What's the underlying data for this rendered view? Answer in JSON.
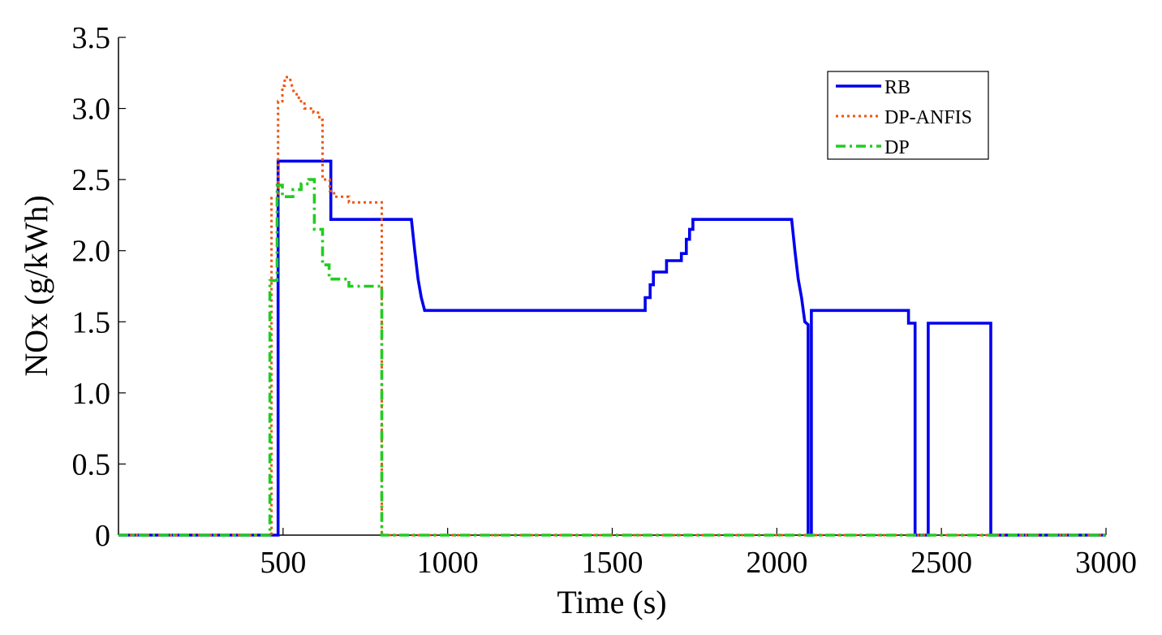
{
  "chart_data": {
    "type": "line",
    "title": "",
    "xlabel": "Time (s)",
    "ylabel": "NOx (g/kWh)",
    "xlim": [
      0,
      3000
    ],
    "ylim": [
      0,
      3.5
    ],
    "x_ticks": [
      500,
      1000,
      1500,
      2000,
      2500,
      3000
    ],
    "x_tick_labels": [
      "500",
      "1000",
      "1500",
      "2000",
      "2500",
      "3000"
    ],
    "y_ticks": [
      0,
      0.5,
      1.0,
      1.5,
      2.0,
      2.5,
      3.0,
      3.5
    ],
    "y_tick_labels": [
      "0",
      "0.5",
      "1.0",
      "1.5",
      "2.0",
      "2.5",
      "3.0",
      "3.5"
    ],
    "grid": false,
    "legend_position": "top-right",
    "series": [
      {
        "name": "RB",
        "color": "#0000ee",
        "style": "solid",
        "points": [
          [
            0,
            0
          ],
          [
            485,
            0
          ],
          [
            485,
            2.63
          ],
          [
            645,
            2.63
          ],
          [
            645,
            2.22
          ],
          [
            890,
            2.22
          ],
          [
            900,
            2.0
          ],
          [
            910,
            1.8
          ],
          [
            920,
            1.67
          ],
          [
            930,
            1.58
          ],
          [
            1600,
            1.58
          ],
          [
            1600,
            1.67
          ],
          [
            1615,
            1.67
          ],
          [
            1615,
            1.76
          ],
          [
            1625,
            1.76
          ],
          [
            1625,
            1.85
          ],
          [
            1665,
            1.85
          ],
          [
            1665,
            1.93
          ],
          [
            1710,
            1.93
          ],
          [
            1710,
            1.98
          ],
          [
            1725,
            1.98
          ],
          [
            1725,
            2.08
          ],
          [
            1735,
            2.08
          ],
          [
            1735,
            2.15
          ],
          [
            1745,
            2.15
          ],
          [
            1745,
            2.22
          ],
          [
            2045,
            2.22
          ],
          [
            2055,
            2.0
          ],
          [
            2065,
            1.8
          ],
          [
            2075,
            1.67
          ],
          [
            2085,
            1.5
          ],
          [
            2095,
            1.48
          ],
          [
            2095,
            0
          ],
          [
            2105,
            0
          ],
          [
            2105,
            1.58
          ],
          [
            2400,
            1.58
          ],
          [
            2400,
            1.49
          ],
          [
            2420,
            1.49
          ],
          [
            2420,
            0
          ],
          [
            2460,
            0
          ],
          [
            2460,
            1.49
          ],
          [
            2650,
            1.49
          ],
          [
            2650,
            0
          ],
          [
            3000,
            0
          ]
        ]
      },
      {
        "name": "DP-ANFIS",
        "color": "#ee5511",
        "style": "dotted",
        "points": [
          [
            0,
            0
          ],
          [
            465,
            0
          ],
          [
            465,
            2.37
          ],
          [
            485,
            2.37
          ],
          [
            485,
            3.05
          ],
          [
            498,
            3.05
          ],
          [
            498,
            3.16
          ],
          [
            505,
            3.16
          ],
          [
            505,
            3.22
          ],
          [
            520,
            3.22
          ],
          [
            528,
            3.15
          ],
          [
            535,
            3.1
          ],
          [
            548,
            3.1
          ],
          [
            548,
            3.05
          ],
          [
            565,
            3.05
          ],
          [
            565,
            3.0
          ],
          [
            592,
            3.0
          ],
          [
            592,
            2.97
          ],
          [
            610,
            2.97
          ],
          [
            610,
            2.92
          ],
          [
            620,
            2.92
          ],
          [
            620,
            2.5
          ],
          [
            642,
            2.5
          ],
          [
            642,
            2.42
          ],
          [
            655,
            2.42
          ],
          [
            655,
            2.38
          ],
          [
            700,
            2.38
          ],
          [
            700,
            2.34
          ],
          [
            800,
            2.34
          ],
          [
            800,
            0
          ],
          [
            3000,
            0
          ]
        ]
      },
      {
        "name": "DP",
        "color": "#22cc22",
        "style": "dashdot",
        "points": [
          [
            0,
            0
          ],
          [
            460,
            0
          ],
          [
            460,
            1.79
          ],
          [
            482,
            1.79
          ],
          [
            482,
            2.46
          ],
          [
            498,
            2.46
          ],
          [
            498,
            2.38
          ],
          [
            530,
            2.38
          ],
          [
            530,
            2.43
          ],
          [
            555,
            2.43
          ],
          [
            555,
            2.47
          ],
          [
            578,
            2.47
          ],
          [
            578,
            2.5
          ],
          [
            595,
            2.5
          ],
          [
            595,
            2.15
          ],
          [
            620,
            2.15
          ],
          [
            620,
            1.9
          ],
          [
            640,
            1.9
          ],
          [
            640,
            1.8
          ],
          [
            700,
            1.8
          ],
          [
            700,
            1.75
          ],
          [
            800,
            1.75
          ],
          [
            800,
            0
          ],
          [
            3000,
            0
          ]
        ]
      }
    ]
  }
}
